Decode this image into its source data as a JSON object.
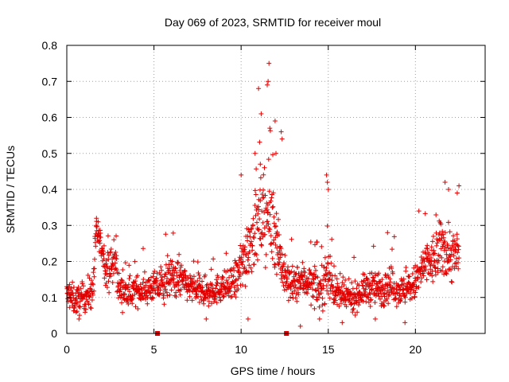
{
  "chart_data": {
    "type": "scatter",
    "title": "Day 069 of 2023, SRMTID for receiver moul",
    "xlabel": "GPS time / hours",
    "ylabel": "SRMTID / TECUs",
    "xlim": [
      0,
      24
    ],
    "ylim": [
      0,
      0.8
    ],
    "x_ticks": [
      0,
      5,
      10,
      15,
      20
    ],
    "y_ticks": [
      0,
      0.1,
      0.2,
      0.3,
      0.4,
      0.5,
      0.6,
      0.7,
      0.8
    ],
    "y_tick_labels": [
      "0",
      "0.1",
      "0.2",
      "0.3",
      "0.4",
      "0.5",
      "0.6",
      "0.7",
      "0.8"
    ],
    "grid": true,
    "marker": "+",
    "series": [
      {
        "name": "SRMTID",
        "color": "#e00000",
        "profile_hours": [
          0,
          0.5,
          1.0,
          1.5,
          1.7,
          2.0,
          2.3,
          2.8,
          3.0,
          3.5,
          4.0,
          4.5,
          5.0,
          5.5,
          6.0,
          6.5,
          7.0,
          7.5,
          8.0,
          8.5,
          9.0,
          9.5,
          10.0,
          10.5,
          11.0,
          11.5,
          12.0,
          12.5,
          13.0,
          13.5,
          14.0,
          14.5,
          15.0,
          15.5,
          16.0,
          16.5,
          17.0,
          17.5,
          18.0,
          18.5,
          19.0,
          19.5,
          20.0,
          20.5,
          21.0,
          21.5,
          22.0,
          22.5
        ],
        "profile_median": [
          0.11,
          0.09,
          0.1,
          0.12,
          0.28,
          0.24,
          0.17,
          0.2,
          0.12,
          0.11,
          0.12,
          0.12,
          0.13,
          0.13,
          0.16,
          0.15,
          0.13,
          0.12,
          0.11,
          0.12,
          0.13,
          0.13,
          0.18,
          0.26,
          0.3,
          0.33,
          0.28,
          0.15,
          0.13,
          0.15,
          0.14,
          0.12,
          0.17,
          0.11,
          0.1,
          0.1,
          0.12,
          0.13,
          0.12,
          0.14,
          0.12,
          0.12,
          0.14,
          0.19,
          0.2,
          0.24,
          0.22,
          0.21
        ],
        "profile_spread": [
          0.04,
          0.04,
          0.04,
          0.05,
          0.04,
          0.04,
          0.05,
          0.05,
          0.04,
          0.04,
          0.04,
          0.04,
          0.04,
          0.05,
          0.05,
          0.05,
          0.04,
          0.04,
          0.04,
          0.04,
          0.04,
          0.05,
          0.08,
          0.1,
          0.1,
          0.12,
          0.1,
          0.06,
          0.05,
          0.05,
          0.05,
          0.05,
          0.08,
          0.04,
          0.04,
          0.04,
          0.04,
          0.05,
          0.05,
          0.05,
          0.04,
          0.04,
          0.05,
          0.06,
          0.07,
          0.08,
          0.08,
          0.07
        ],
        "peak_points": [
          [
            11.6,
            0.75
          ],
          [
            11.55,
            0.7
          ],
          [
            11.0,
            0.68
          ],
          [
            11.5,
            0.69
          ],
          [
            11.15,
            0.61
          ],
          [
            11.95,
            0.59
          ],
          [
            11.65,
            0.57
          ],
          [
            12.3,
            0.56
          ],
          [
            12.35,
            0.54
          ],
          [
            12.0,
            0.5
          ],
          [
            14.9,
            0.44
          ],
          [
            14.95,
            0.42
          ],
          [
            15.0,
            0.4
          ],
          [
            21.7,
            0.42
          ],
          [
            22.5,
            0.41
          ],
          [
            21.9,
            0.4
          ],
          [
            22.4,
            0.39
          ],
          [
            20.2,
            0.34
          ],
          [
            18.4,
            0.28
          ],
          [
            1.7,
            0.32
          ],
          [
            1.8,
            0.31
          ],
          [
            10.0,
            0.44
          ],
          [
            10.8,
            0.5
          ],
          [
            11.1,
            0.47
          ]
        ],
        "low_points": [
          [
            0.7,
            0.04
          ],
          [
            13.4,
            0.02
          ],
          [
            15.8,
            0.03
          ],
          [
            19.4,
            0.03
          ],
          [
            8.0,
            0.04
          ],
          [
            10.4,
            0.04
          ],
          [
            17.7,
            0.04
          ],
          [
            14.5,
            0.04
          ]
        ],
        "edge_markers_x": [
          5.2,
          12.6
        ]
      }
    ]
  }
}
